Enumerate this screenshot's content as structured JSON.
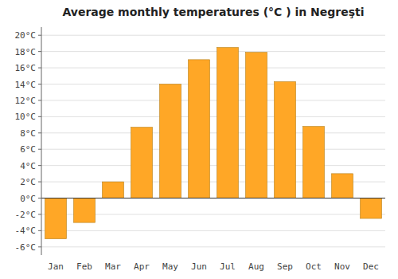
{
  "chart_data": {
    "type": "bar",
    "title": "Average monthly temperatures (°C ) in Negreşti",
    "categories": [
      "Jan",
      "Feb",
      "Mar",
      "Apr",
      "May",
      "Jun",
      "Jul",
      "Aug",
      "Sep",
      "Oct",
      "Nov",
      "Dec"
    ],
    "values": [
      -5.0,
      -3.0,
      2.0,
      8.7,
      14.0,
      17.0,
      18.5,
      17.9,
      14.3,
      8.8,
      3.0,
      -2.5
    ],
    "color": "#FFA726",
    "ylim": [
      -7,
      21
    ],
    "yticks": [
      {
        "value": -6,
        "label": "-6°C"
      },
      {
        "value": -4,
        "label": "-4°C"
      },
      {
        "value": -2,
        "label": "-2°C"
      },
      {
        "value": 0,
        "label": "0°C"
      },
      {
        "value": 2,
        "label": "2°C"
      },
      {
        "value": 4,
        "label": "4°C"
      },
      {
        "value": 6,
        "label": "6°C"
      },
      {
        "value": 8,
        "label": "8°C"
      },
      {
        "value": 10,
        "label": "10°C"
      },
      {
        "value": 12,
        "label": "12°C"
      },
      {
        "value": 14,
        "label": "14°C"
      },
      {
        "value": 16,
        "label": "16°C"
      },
      {
        "value": 18,
        "label": "18°C"
      },
      {
        "value": 20,
        "label": "20°C"
      }
    ],
    "grid": true
  }
}
